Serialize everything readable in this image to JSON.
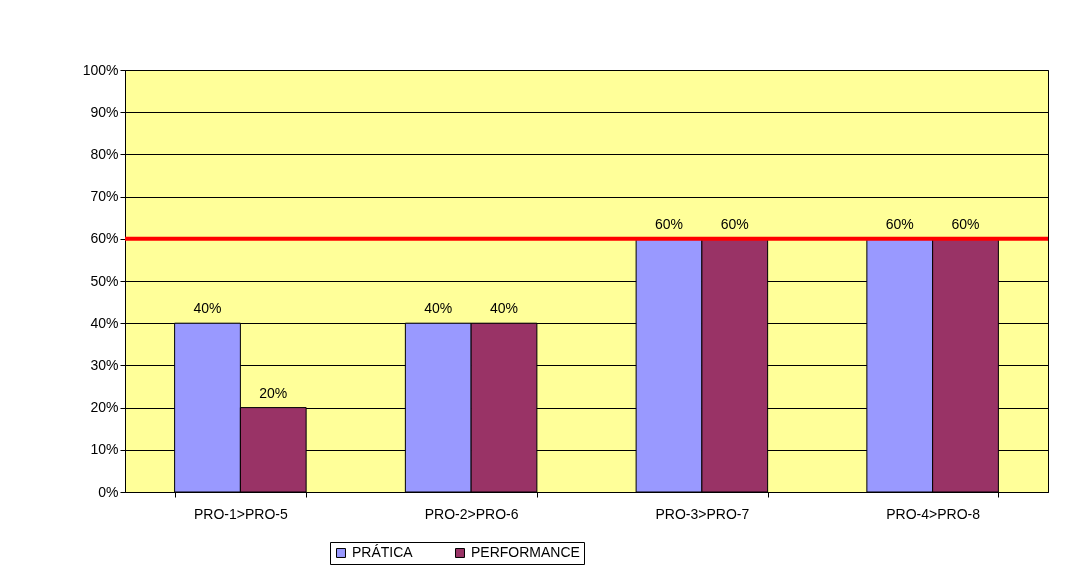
{
  "chart_data": {
    "type": "bar",
    "categories": [
      "PRO-1>PRO-5",
      "PRO-2>PRO-6",
      "PRO-3>PRO-7",
      "PRO-4>PRO-8"
    ],
    "series": [
      {
        "name": "PRÁTICA",
        "color": "#9999ff",
        "values": [
          40,
          40,
          60,
          60
        ],
        "value_labels": [
          "40%",
          "40%",
          "60%",
          "60%"
        ]
      },
      {
        "name": "PERFORMANCE",
        "color": "#993366",
        "values": [
          20,
          40,
          60,
          60
        ],
        "value_labels": [
          "20%",
          "40%",
          "60%",
          "60%"
        ]
      }
    ],
    "ylim": [
      0,
      100
    ],
    "yticks": [
      {
        "value": 0,
        "label": "0%"
      },
      {
        "value": 10,
        "label": "10%"
      },
      {
        "value": 20,
        "label": "20%"
      },
      {
        "value": 30,
        "label": "30%"
      },
      {
        "value": 40,
        "label": "40%"
      },
      {
        "value": 50,
        "label": "50%"
      },
      {
        "value": 60,
        "label": "60%"
      },
      {
        "value": 70,
        "label": "70%"
      },
      {
        "value": 80,
        "label": "80%"
      },
      {
        "value": 90,
        "label": "90%"
      },
      {
        "value": 100,
        "label": "100%"
      }
    ],
    "grid": "y",
    "legend": "bottom",
    "ref_lines": [
      {
        "axis": "y",
        "value": 60,
        "color": "#ff0000"
      }
    ]
  }
}
